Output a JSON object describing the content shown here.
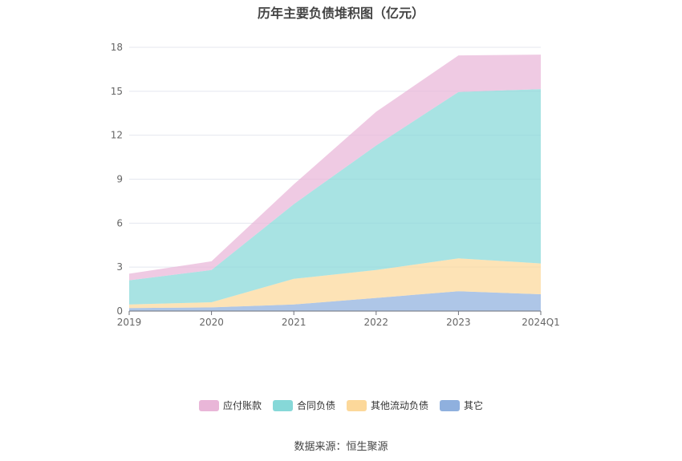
{
  "chart_data": {
    "type": "area",
    "stacked": true,
    "title": "历年主要负债堆积图（亿元）",
    "categories": [
      "2019",
      "2020",
      "2021",
      "2022",
      "2023",
      "2024Q1"
    ],
    "ylim": [
      0,
      18
    ],
    "yticks": [
      "0",
      "3",
      "6",
      "9",
      "12",
      "15",
      "18"
    ],
    "grid": true,
    "legend_position": "bottom",
    "series": [
      {
        "name": "其它",
        "color": "#8fb0de",
        "values": [
          0.2,
          0.25,
          0.45,
          0.9,
          1.35,
          1.15
        ]
      },
      {
        "name": "其他流动负债",
        "color": "#fcd89a",
        "values": [
          0.25,
          0.35,
          1.75,
          1.9,
          2.25,
          2.1
        ]
      },
      {
        "name": "合同负债",
        "color": "#86d8d8",
        "values": [
          1.65,
          2.2,
          5.1,
          8.5,
          11.35,
          11.9
        ]
      },
      {
        "name": "应付账款",
        "color": "#e9b6d8",
        "values": [
          0.45,
          0.6,
          1.35,
          2.3,
          2.5,
          2.35
        ]
      }
    ],
    "legend_order": [
      "应付账款",
      "合同负债",
      "其他流动负债",
      "其它"
    ],
    "source": "数据来源：恒生聚源"
  }
}
